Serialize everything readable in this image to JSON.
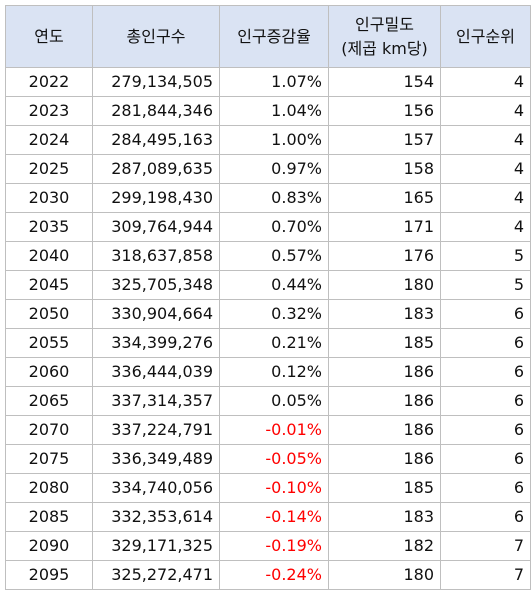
{
  "table": {
    "headers": {
      "year": "연도",
      "total": "총인구수",
      "rate": "인구증감율",
      "density_line1": "인구밀도",
      "density_line2": "(제곱 km당)",
      "rank": "인구순위"
    },
    "rows": [
      {
        "year": "2022",
        "total": "279,134,505",
        "rate": "1.07%",
        "density": "154",
        "rank": "4",
        "negative": false
      },
      {
        "year": "2023",
        "total": "281,844,346",
        "rate": "1.04%",
        "density": "156",
        "rank": "4",
        "negative": false
      },
      {
        "year": "2024",
        "total": "284,495,163",
        "rate": "1.00%",
        "density": "157",
        "rank": "4",
        "negative": false
      },
      {
        "year": "2025",
        "total": "287,089,635",
        "rate": "0.97%",
        "density": "158",
        "rank": "4",
        "negative": false
      },
      {
        "year": "2030",
        "total": "299,198,430",
        "rate": "0.83%",
        "density": "165",
        "rank": "4",
        "negative": false
      },
      {
        "year": "2035",
        "total": "309,764,944",
        "rate": "0.70%",
        "density": "171",
        "rank": "4",
        "negative": false
      },
      {
        "year": "2040",
        "total": "318,637,858",
        "rate": "0.57%",
        "density": "176",
        "rank": "5",
        "negative": false
      },
      {
        "year": "2045",
        "total": "325,705,348",
        "rate": "0.44%",
        "density": "180",
        "rank": "5",
        "negative": false
      },
      {
        "year": "2050",
        "total": "330,904,664",
        "rate": "0.32%",
        "density": "183",
        "rank": "6",
        "negative": false
      },
      {
        "year": "2055",
        "total": "334,399,276",
        "rate": "0.21%",
        "density": "185",
        "rank": "6",
        "negative": false
      },
      {
        "year": "2060",
        "total": "336,444,039",
        "rate": "0.12%",
        "density": "186",
        "rank": "6",
        "negative": false
      },
      {
        "year": "2065",
        "total": "337,314,357",
        "rate": "0.05%",
        "density": "186",
        "rank": "6",
        "negative": false
      },
      {
        "year": "2070",
        "total": "337,224,791",
        "rate": "-0.01%",
        "density": "186",
        "rank": "6",
        "negative": true
      },
      {
        "year": "2075",
        "total": "336,349,489",
        "rate": "-0.05%",
        "density": "186",
        "rank": "6",
        "negative": true
      },
      {
        "year": "2080",
        "total": "334,740,056",
        "rate": "-0.10%",
        "density": "185",
        "rank": "6",
        "negative": true
      },
      {
        "year": "2085",
        "total": "332,353,614",
        "rate": "-0.14%",
        "density": "183",
        "rank": "6",
        "negative": true
      },
      {
        "year": "2090",
        "total": "329,171,325",
        "rate": "-0.19%",
        "density": "182",
        "rank": "7",
        "negative": true
      },
      {
        "year": "2095",
        "total": "325,272,471",
        "rate": "-0.24%",
        "density": "180",
        "rank": "7",
        "negative": true
      }
    ]
  },
  "colors": {
    "header_background": "#dae3f3",
    "negative_rate": "#ff0000",
    "grid_line": "#bfbfbf"
  }
}
